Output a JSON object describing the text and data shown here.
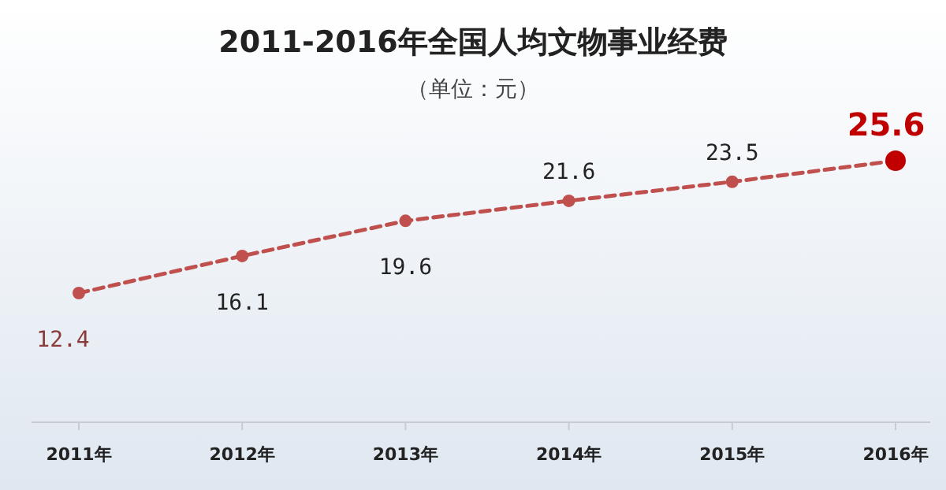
{
  "chart_data": {
    "type": "line",
    "title": "2011-2016年全国人均文物事业经费",
    "subtitle": "（单位：元）",
    "categories": [
      "2011年",
      "2012年",
      "2013年",
      "2014年",
      "2015年",
      "2016年"
    ],
    "series": [
      {
        "color": "#c0504d",
        "colors": [
          "#c0504d",
          "#c0504d",
          "#c0504d",
          "#c0504d",
          "#c0504d",
          "#c00000"
        ],
        "values": [
          12.4,
          16.1,
          19.6,
          21.6,
          23.5,
          25.6
        ]
      }
    ],
    "data_labels": true,
    "marker": "circle",
    "line_style": "dashed"
  }
}
